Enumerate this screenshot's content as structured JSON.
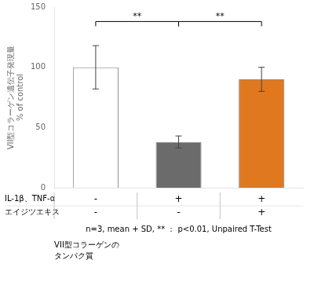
{
  "chart_data": {
    "type": "bar",
    "categories": [
      null,
      null,
      null
    ],
    "values": [
      100,
      38,
      90
    ],
    "errors": [
      18,
      5,
      10
    ],
    "colors": [
      "white",
      "#6b6b6b",
      "#E07820"
    ],
    "ylim": [
      0,
      150
    ],
    "yticks": [
      0,
      50,
      100,
      150
    ],
    "ylabel": "% of control",
    "ylabel_outer": "VII型コラーゲン遺伝子発現量",
    "grid": false,
    "tick_labels": "y",
    "brackets": [
      {
        "from": 0,
        "to": 1,
        "y": 138,
        "label": "**"
      },
      {
        "from": 1,
        "to": 2,
        "y": 138,
        "label": "**"
      }
    ],
    "table": [
      {
        "label": "IL-1β、TNF-α",
        "signs": [
          "-",
          "+",
          "+"
        ]
      },
      {
        "label": "エイジツエキス",
        "signs": [
          "-",
          "-",
          "+"
        ]
      }
    ],
    "caption": "n=3, mean + SD, ** ： p<0.01, Unpaired T-Test",
    "annotations": [
      "VII型コラーゲンの",
      "タンパク質"
    ]
  }
}
